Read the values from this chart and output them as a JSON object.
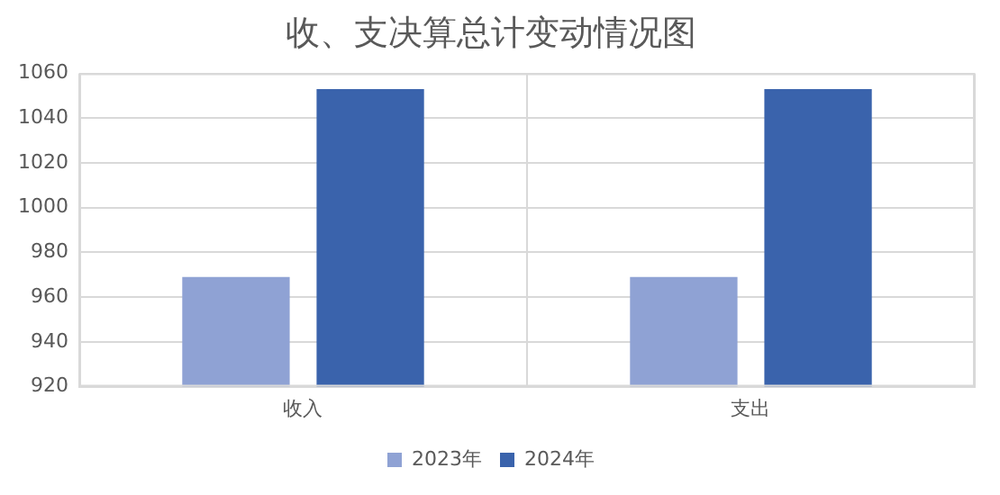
{
  "chart_data": {
    "type": "bar",
    "title": "收、支决算总计变动情况图",
    "categories": [
      "收入",
      "支出"
    ],
    "series": [
      {
        "name": "2023年",
        "color": "#8fa2d4",
        "values": [
          969,
          969
        ]
      },
      {
        "name": "2024年",
        "color": "#3a63ac",
        "values": [
          1053,
          1053
        ]
      }
    ],
    "ylim": [
      920,
      1060
    ],
    "yticks": [
      920,
      940,
      960,
      980,
      1000,
      1020,
      1040,
      1060
    ],
    "grid": true,
    "legend": "bottom"
  }
}
